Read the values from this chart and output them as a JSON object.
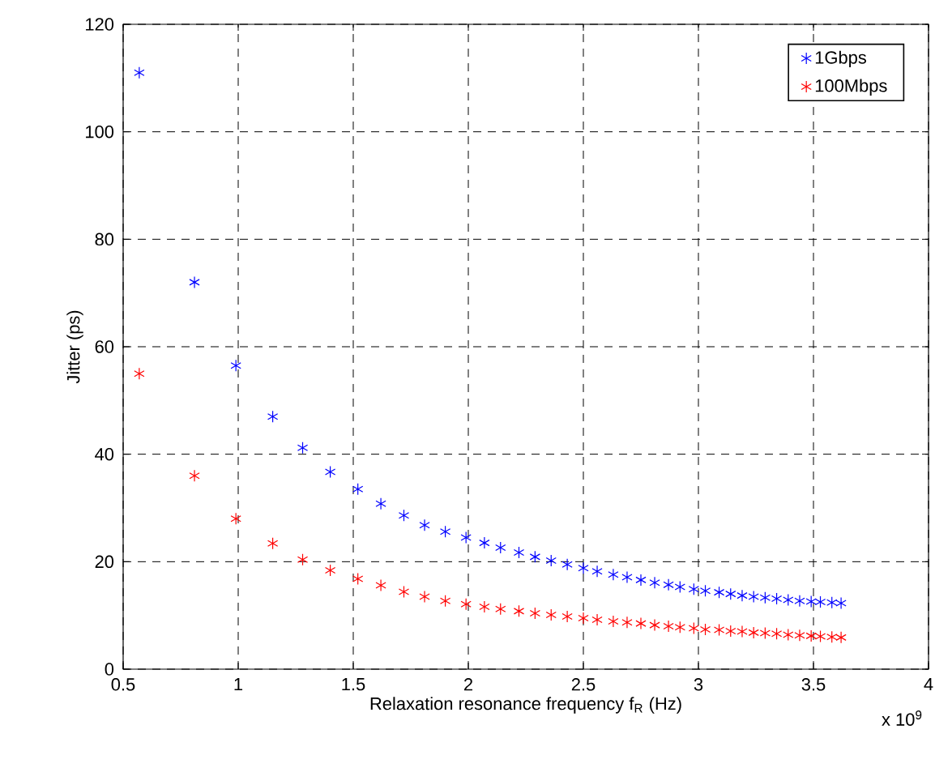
{
  "chart_data": {
    "type": "scatter",
    "xlabel": "Relaxation resonance frequency f$_{R}$ (Hz)",
    "ylabel": "Jitter  (ps)",
    "annotations": [
      "x 10$^{9}$"
    ],
    "x": [
      0.57,
      0.81,
      0.99,
      1.15,
      1.28,
      1.4,
      1.52,
      1.62,
      1.72,
      1.81,
      1.9,
      1.99,
      2.07,
      2.14,
      2.22,
      2.29,
      2.36,
      2.43,
      2.5,
      2.56,
      2.63,
      2.69,
      2.75,
      2.81,
      2.87,
      2.92,
      2.98,
      3.03,
      3.09,
      3.14,
      3.19,
      3.24,
      3.29,
      3.34,
      3.39,
      3.44,
      3.49,
      3.53,
      3.58,
      3.62
    ],
    "series": [
      {
        "name": "1Gbps",
        "color": "#0000ff",
        "values": [
          111,
          72,
          56.5,
          47,
          41.2,
          36.7,
          33.5,
          30.8,
          28.6,
          26.8,
          25.6,
          24.5,
          23.5,
          22.6,
          21.7,
          20.9,
          20.2,
          19.5,
          18.8,
          18.2,
          17.6,
          17.1,
          16.6,
          16.1,
          15.7,
          15.3,
          14.9,
          14.6,
          14.3,
          14.0,
          13.7,
          13.5,
          13.3,
          13.1,
          12.9,
          12.7,
          12.6,
          12.5,
          12.4,
          12.3
        ]
      },
      {
        "name": "100Mbps",
        "color": "#ff0000",
        "values": [
          55,
          36,
          28,
          23.4,
          20.4,
          18.4,
          16.8,
          15.6,
          14.4,
          13.5,
          12.7,
          12.1,
          11.6,
          11.2,
          10.8,
          10.4,
          10.1,
          9.8,
          9.5,
          9.2,
          8.9,
          8.7,
          8.5,
          8.2,
          8.0,
          7.8,
          7.6,
          7.4,
          7.3,
          7.1,
          7.0,
          6.8,
          6.7,
          6.6,
          6.4,
          6.3,
          6.2,
          6.1,
          6.0,
          5.9
        ]
      }
    ],
    "xlim": [
      0.5,
      4
    ],
    "xticks": [
      0.5,
      1,
      1.5,
      2,
      2.5,
      3,
      3.5,
      4
    ],
    "ylim": [
      0,
      120
    ],
    "yticks": [
      0,
      20,
      40,
      60,
      80,
      100,
      120
    ],
    "grid": true,
    "legend": "top right",
    "marker": "cross"
  }
}
